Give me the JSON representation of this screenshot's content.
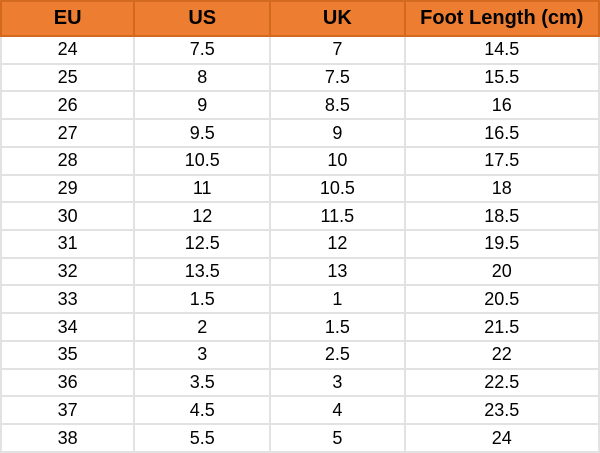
{
  "chart_data": {
    "type": "table",
    "columns": [
      "EU",
      "US",
      "UK",
      "Foot Length (cm)"
    ],
    "rows": [
      [
        "24",
        "7.5",
        "7",
        "14.5"
      ],
      [
        "25",
        "8",
        "7.5",
        "15.5"
      ],
      [
        "26",
        "9",
        "8.5",
        "16"
      ],
      [
        "27",
        "9.5",
        "9",
        "16.5"
      ],
      [
        "28",
        "10.5",
        "10",
        "17.5"
      ],
      [
        "29",
        "11",
        "10.5",
        "18"
      ],
      [
        "30",
        "12",
        "11.5",
        "18.5"
      ],
      [
        "31",
        "12.5",
        "12",
        "19.5"
      ],
      [
        "32",
        "13.5",
        "13",
        "20"
      ],
      [
        "33",
        "1.5",
        "1",
        "20.5"
      ],
      [
        "34",
        "2",
        "1.5",
        "21.5"
      ],
      [
        "35",
        "3",
        "2.5",
        "22"
      ],
      [
        "36",
        "3.5",
        "3",
        "22.5"
      ],
      [
        "37",
        "4.5",
        "4",
        "23.5"
      ],
      [
        "38",
        "5.5",
        "5",
        "24"
      ]
    ],
    "layout": {
      "header_position": "top",
      "grid": true,
      "column_width_pct": [
        22.3,
        22.7,
        22.5,
        32.5
      ]
    }
  },
  "colors": {
    "header_bg": "#ED7D31",
    "header_border": "#D2691E",
    "body_border": "#E2E2E2",
    "text": "#000000"
  }
}
